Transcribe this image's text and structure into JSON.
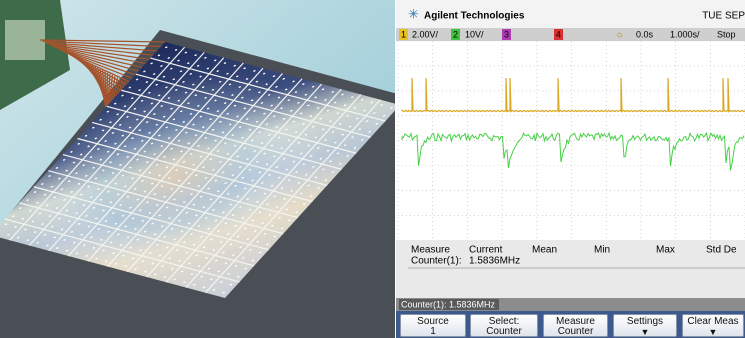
{
  "scope": {
    "brand": "Agilent Technologies",
    "date": "TUE SEP",
    "status": {
      "ch1": "1",
      "ch1_scale": "2.00V/",
      "ch2": "2",
      "ch2_scale": "10V/",
      "ch3": "3",
      "ch4": "4",
      "delay": "0.0s",
      "timebase": "1.000s/",
      "run_state": "Stop"
    },
    "measure": {
      "headers": [
        "Measure",
        "Current",
        "Mean",
        "Min",
        "Max",
        "Std De"
      ],
      "row": [
        "Counter(1):",
        "1.5836MHz"
      ]
    },
    "status_line": "Counter(1): 1.5836MHz",
    "softkeys": [
      {
        "label": "Source",
        "value": "1"
      },
      {
        "label": "Select:",
        "value": "Counter"
      },
      {
        "label": "Measure",
        "value": "Counter"
      },
      {
        "label": "Settings"
      },
      {
        "label": "Clear Meas"
      }
    ]
  }
}
